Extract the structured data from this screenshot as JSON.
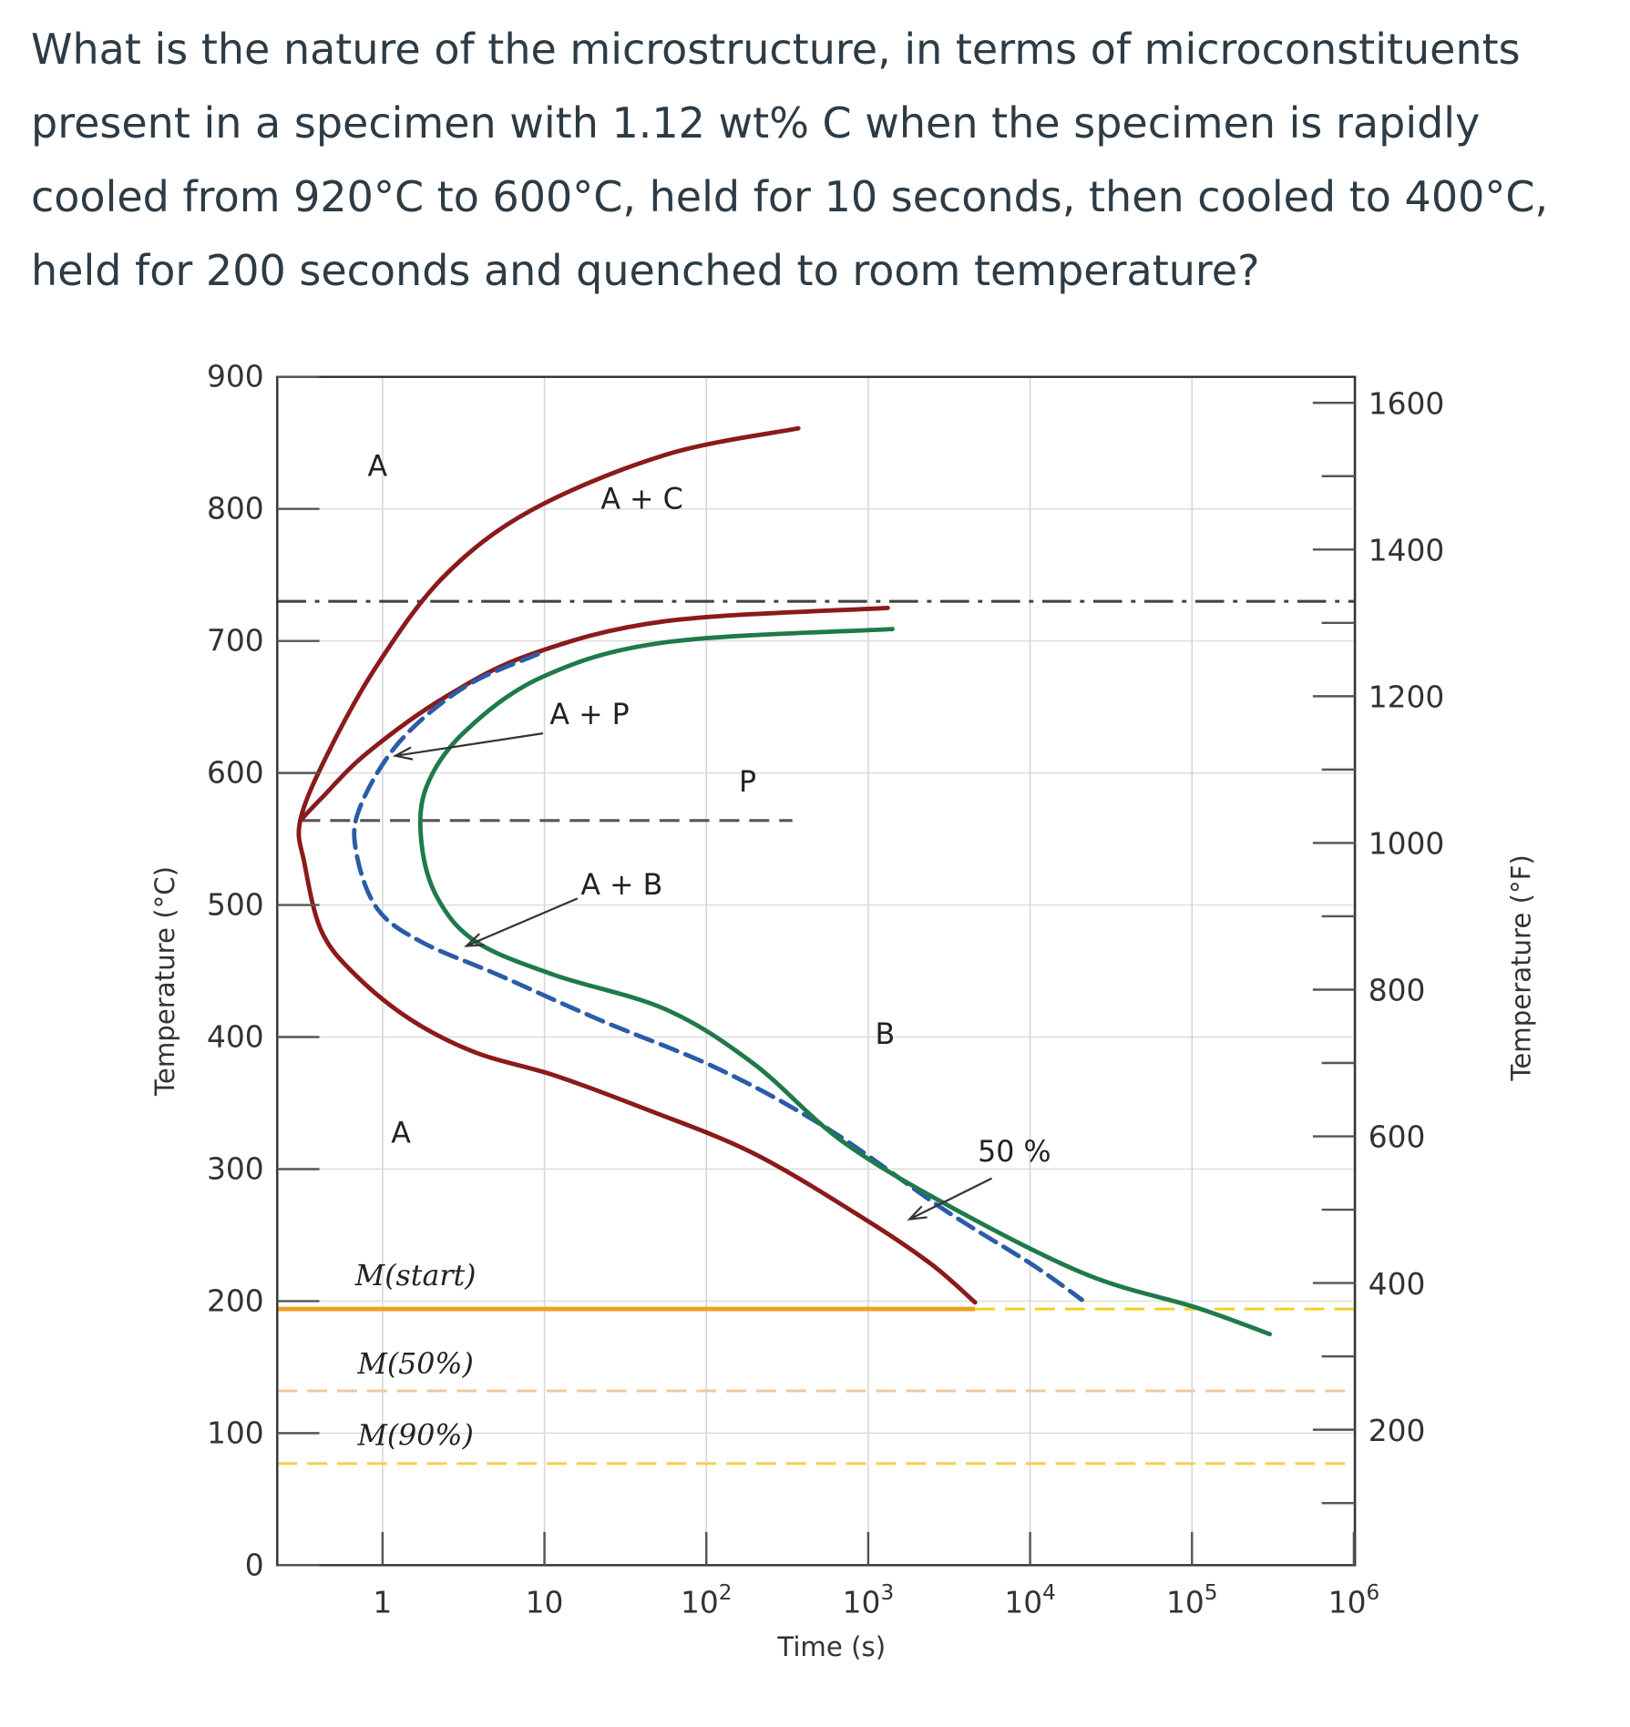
{
  "question": "What is the nature of the microstructure, in terms of microconstituents present in a specimen with 1.12 wt% C when the specimen is rapidly cooled from 920°C to 600°C, held for 10 seconds, then cooled to 400°C, held for 200 seconds and quenched to room temperature?",
  "chart_data": {
    "type": "line",
    "xlabel": "Time (s)",
    "ylabel": "Temperature (°C)",
    "y2label": "Temperature (°F)",
    "xscale": "log",
    "xlim": [
      0.22,
      1000000
    ],
    "ylim": [
      0,
      900
    ],
    "y2lim": [
      32,
      1652
    ],
    "grid": true,
    "x_ticks": [
      {
        "value": 1,
        "base": "1",
        "exp": ""
      },
      {
        "value": 10,
        "base": "10",
        "exp": ""
      },
      {
        "value": 100,
        "base": "10",
        "exp": "2"
      },
      {
        "value": 1000,
        "base": "10",
        "exp": "3"
      },
      {
        "value": 10000,
        "base": "10",
        "exp": "4"
      },
      {
        "value": 100000,
        "base": "10",
        "exp": "5"
      },
      {
        "value": 1000000,
        "base": "10",
        "exp": "6"
      }
    ],
    "y_ticks": [
      "0",
      "100",
      "200",
      "300",
      "400",
      "500",
      "600",
      "700",
      "800",
      "900"
    ],
    "y2_ticks": [
      "200",
      "400",
      "600",
      "800",
      "1000",
      "1200",
      "1400",
      "1600"
    ],
    "series": [
      {
        "key": "proeutectoid-start",
        "color": "#8b1a1a",
        "style": "solid",
        "points": [
          [
            370,
            861
          ],
          [
            56,
            841
          ],
          [
            8.3,
            799
          ],
          [
            2.4,
            749
          ],
          [
            0.93,
            682
          ],
          [
            0.46,
            615
          ],
          [
            0.31,
            564
          ],
          [
            0.33,
            531
          ],
          [
            0.42,
            480
          ],
          [
            0.68,
            447
          ],
          [
            1.5,
            413
          ],
          [
            3.8,
            388
          ],
          [
            11.5,
            371
          ],
          [
            41,
            346
          ],
          [
            195,
            312
          ],
          [
            955,
            262
          ],
          [
            2450,
            228
          ],
          [
            4570,
            199
          ]
        ]
      },
      {
        "key": "pearlite-start",
        "color": "#8b1a1a",
        "style": "solid",
        "points": [
          [
            1320,
            725
          ],
          [
            56,
            715
          ],
          [
            8.3,
            690
          ],
          [
            2.4,
            657
          ],
          [
            0.8,
            615
          ],
          [
            0.42,
            581
          ],
          [
            0.31,
            564
          ]
        ]
      },
      {
        "key": "fifty-percent",
        "color": "#2a5ca8",
        "style": "dashed",
        "points": [
          [
            9.1,
            690
          ],
          [
            3.2,
            665
          ],
          [
            1.26,
            623
          ],
          [
            0.72,
            573
          ],
          [
            0.69,
            539
          ],
          [
            0.93,
            497
          ],
          [
            1.74,
            472
          ],
          [
            5.2,
            447
          ],
          [
            21.9,
            413
          ],
          [
            123,
            375
          ],
          [
            589,
            329
          ],
          [
            2880,
            270
          ],
          [
            10200,
            228
          ],
          [
            20900,
            201
          ]
        ]
      },
      {
        "key": "finish",
        "color": "#1f7a4a",
        "style": "solid",
        "points": [
          [
            1410,
            709
          ],
          [
            56,
            699
          ],
          [
            9.8,
            673
          ],
          [
            3.2,
            631
          ],
          [
            1.86,
            589
          ],
          [
            1.74,
            547
          ],
          [
            2.19,
            505
          ],
          [
            3.8,
            472
          ],
          [
            11.5,
            447
          ],
          [
            56,
            421
          ],
          [
            195,
            380
          ],
          [
            692,
            321
          ],
          [
            3390,
            270
          ],
          [
            22400,
            220
          ],
          [
            107000,
            195
          ],
          [
            302000,
            175
          ]
        ]
      }
    ],
    "reference_lines": [
      {
        "key": "eutectoid",
        "temp": 730,
        "style": "dash-dot",
        "color": "#444",
        "from": 0.22,
        "to": 1000000
      },
      {
        "key": "pearlite-bainite-boundary",
        "temp": 564,
        "style": "dashed",
        "color": "#555",
        "from": 0.31,
        "to": 340
      },
      {
        "key": "m-start",
        "temp": 194,
        "style": "solid",
        "color": "#f0a020",
        "from": 0.22,
        "to": 4570
      },
      {
        "key": "m-start-ext",
        "temp": 194,
        "style": "dashed",
        "color": "#f5d020",
        "from": 4570,
        "to": 1000000
      },
      {
        "key": "m-50",
        "temp": 132,
        "style": "dashed",
        "color": "#f0c8a0",
        "from": 0.22,
        "to": 1000000
      },
      {
        "key": "m-90",
        "temp": 77,
        "style": "dashed",
        "color": "#f5d050",
        "from": 0.22,
        "to": 1000000
      }
    ],
    "annotations": [
      {
        "text": "A",
        "t": 0.93,
        "T": 825
      },
      {
        "text": "A + C",
        "t": 40,
        "T": 800
      },
      {
        "text": "A + P",
        "t": 19,
        "T": 637
      },
      {
        "text": "P",
        "t": 180,
        "T": 586
      },
      {
        "text": "A + B",
        "t": 30,
        "T": 508
      },
      {
        "text": "B",
        "t": 1270,
        "T": 395
      },
      {
        "text": "A",
        "t": 1.3,
        "T": 320
      },
      {
        "text": "50 %",
        "t": 8000,
        "T": 306
      }
    ],
    "arrows": [
      {
        "from": [
          9.8,
          630
        ],
        "to": [
          1.2,
          613
        ]
      },
      {
        "from": [
          16,
          505
        ],
        "to": [
          3.3,
          469
        ]
      },
      {
        "from": [
          5800,
          293
        ],
        "to": [
          1800,
          262
        ]
      }
    ],
    "m_labels": [
      {
        "text": "M(start)",
        "t": 1.6,
        "T": 212
      },
      {
        "text": "M(50%)",
        "t": 1.6,
        "T": 145
      },
      {
        "text": "M(90%)",
        "t": 1.6,
        "T": 91
      }
    ]
  }
}
